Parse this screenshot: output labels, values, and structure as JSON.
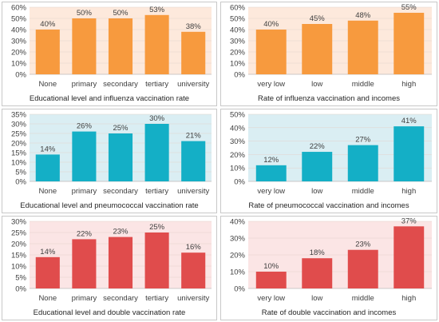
{
  "chart_data": [
    {
      "type": "bar",
      "title": "Educational level and influenza vaccination rate",
      "categories": [
        "None",
        "primary",
        "secondary",
        "tertiary",
        "university"
      ],
      "values": [
        40,
        50,
        50,
        53,
        38
      ],
      "value_labels": [
        "40%",
        "50%",
        "50%",
        "53%",
        "38%"
      ],
      "ylim": [
        0,
        60
      ],
      "yticks": [
        "0%",
        "10%",
        "20%",
        "30%",
        "40%",
        "50%",
        "60%"
      ],
      "bar_color": "#f79a3e",
      "plot_bg": "#fde9dc"
    },
    {
      "type": "bar",
      "title": "Rate of influenza vaccination and incomes",
      "categories": [
        "very low",
        "low",
        "middle",
        "high"
      ],
      "values": [
        40,
        45,
        48,
        55
      ],
      "value_labels": [
        "40%",
        "45%",
        "48%",
        "55%"
      ],
      "ylim": [
        0,
        60
      ],
      "yticks": [
        "0%",
        "10%",
        "20%",
        "30%",
        "40%",
        "50%",
        "60%"
      ],
      "bar_color": "#f79a3e",
      "plot_bg": "#fde9dc"
    },
    {
      "type": "bar",
      "title": "Educational level and pneumococcal vaccination rate",
      "categories": [
        "None",
        "primary",
        "secondary",
        "tertiary",
        "university"
      ],
      "values": [
        14,
        26,
        25,
        30,
        21
      ],
      "value_labels": [
        "14%",
        "26%",
        "25%",
        "30%",
        "21%"
      ],
      "ylim": [
        0,
        35
      ],
      "yticks": [
        "0%",
        "5%",
        "10%",
        "15%",
        "20%",
        "25%",
        "30%",
        "35%"
      ],
      "bar_color": "#14afc6",
      "plot_bg": "#daeef3"
    },
    {
      "type": "bar",
      "title": "Rate of pneumococcal vaccination and incomes",
      "categories": [
        "very low",
        "low",
        "middle",
        "high"
      ],
      "values": [
        12,
        22,
        27,
        41
      ],
      "value_labels": [
        "12%",
        "22%",
        "27%",
        "41%"
      ],
      "ylim": [
        0,
        50
      ],
      "yticks": [
        "0%",
        "10%",
        "20%",
        "30%",
        "40%",
        "50%"
      ],
      "bar_color": "#14afc6",
      "plot_bg": "#daeef3"
    },
    {
      "type": "bar",
      "title": "Educational level and double vaccination rate",
      "categories": [
        "None",
        "primary",
        "secondary",
        "tertiary",
        "university"
      ],
      "values": [
        14,
        22,
        23,
        25,
        16
      ],
      "value_labels": [
        "14%",
        "22%",
        "23%",
        "25%",
        "16%"
      ],
      "ylim": [
        0,
        30
      ],
      "yticks": [
        "0%",
        "5%",
        "10%",
        "15%",
        "20%",
        "25%",
        "30%"
      ],
      "bar_color": "#e04c4c",
      "plot_bg": "#fbe5e5"
    },
    {
      "type": "bar",
      "title": "Rate of double vaccination and incomes",
      "categories": [
        "very low",
        "low",
        "middle",
        "high"
      ],
      "values": [
        10,
        18,
        23,
        37
      ],
      "value_labels": [
        "10%",
        "18%",
        "23%",
        "37%"
      ],
      "ylim": [
        0,
        40
      ],
      "yticks": [
        "0%",
        "10%",
        "20%",
        "30%",
        "40%"
      ],
      "bar_color": "#e04c4c",
      "plot_bg": "#fbe5e5"
    }
  ]
}
